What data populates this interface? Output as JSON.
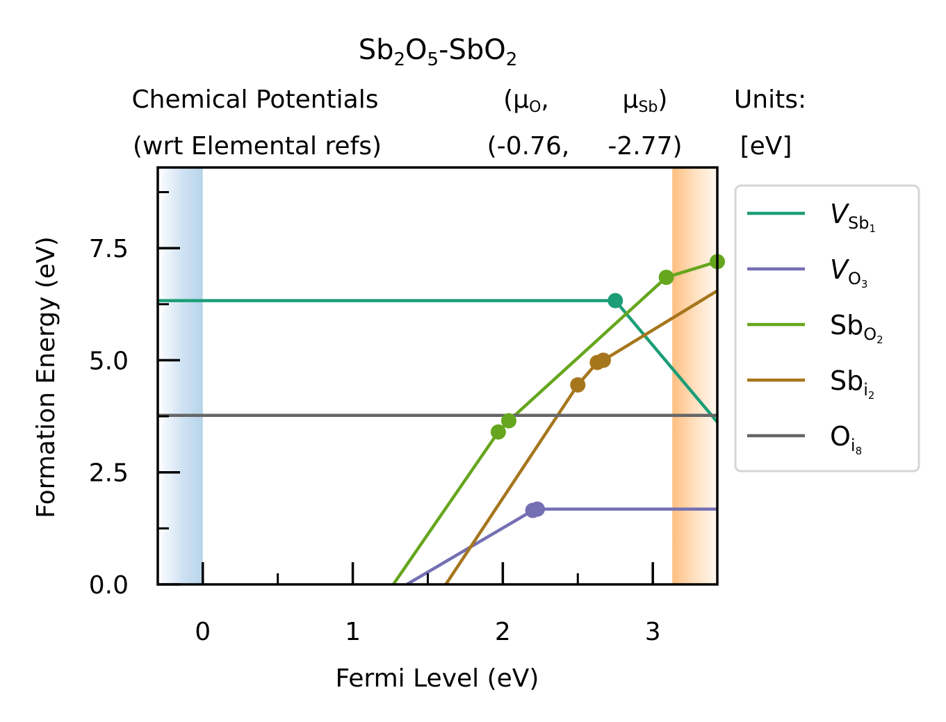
{
  "chart_data": {
    "type": "line",
    "title": "Sb2O5-SbO2",
    "title_parts": {
      "a": "Sb",
      "a_sub": "2",
      "b": "O",
      "b_sub": "5",
      "c": "-SbO",
      "c_sub": "2"
    },
    "header": {
      "line1_left": "Chemical Potentials",
      "line2_left": "(wrt Elemental refs)",
      "mu_o_open": "(μ",
      "mu_o_sub": "O",
      "mu_o_close": ",",
      "mu_sb": "μ",
      "mu_sb_sub": "Sb",
      "mu_sb_close": ")",
      "mu_o_value": "(-0.76,",
      "mu_sb_value": "-2.77)",
      "units_label": "Units:",
      "units_value": "[eV]"
    },
    "xlabel": "Fermi Level (eV)",
    "ylabel": "Formation Energy (eV)",
    "xlim": [
      -0.3,
      3.43
    ],
    "ylim": [
      0,
      9.3
    ],
    "xticks": [
      0,
      1,
      2,
      3
    ],
    "xtick_labels": [
      "0",
      "1",
      "2",
      "3"
    ],
    "yticks": [
      0,
      2.5,
      5.0,
      7.5
    ],
    "ytick_labels": [
      "0.0",
      "2.5",
      "5.0",
      "7.5"
    ],
    "vbm_shade_range": [
      -0.3,
      0
    ],
    "cbm_shade_range": [
      3.13,
      3.43
    ],
    "legend_placement": "outside right",
    "series": [
      {
        "name": "V",
        "name_sub": "Sb",
        "name_subsub": "1",
        "italic": true,
        "color": "#1b9e77",
        "x": [
          -0.3,
          2.75,
          3.43
        ],
        "y": [
          6.33,
          6.33,
          3.62
        ],
        "markers": [
          2.75
        ]
      },
      {
        "name": "V",
        "name_sub": "O",
        "name_subsub": "3",
        "italic": true,
        "color": "#7570b3",
        "x": [
          1.36,
          2.2,
          2.23,
          3.43
        ],
        "y": [
          0,
          1.65,
          1.68,
          1.68
        ],
        "markers": [
          2.2,
          2.23
        ]
      },
      {
        "name": "Sb",
        "name_sub": "O",
        "name_subsub": "2",
        "italic": false,
        "color": "#66a61e",
        "x": [
          1.27,
          1.97,
          2.04,
          3.09,
          3.43
        ],
        "y": [
          0,
          3.4,
          3.65,
          6.85,
          7.2
        ],
        "markers": [
          1.97,
          2.04,
          3.09,
          3.43
        ]
      },
      {
        "name": "Sb",
        "name_sub": "i",
        "name_subsub": "2",
        "italic": false,
        "color": "#a6761d",
        "x": [
          1.62,
          2.5,
          2.63,
          2.67,
          3.43
        ],
        "y": [
          0,
          4.45,
          4.95,
          5.0,
          6.55
        ],
        "markers": [
          2.5,
          2.63,
          2.67
        ]
      },
      {
        "name": "O",
        "name_sub": "i",
        "name_subsub": "8",
        "italic": false,
        "color": "#666666",
        "x": [
          -0.3,
          3.43
        ],
        "y": [
          3.77,
          3.77
        ],
        "markers": []
      }
    ]
  }
}
